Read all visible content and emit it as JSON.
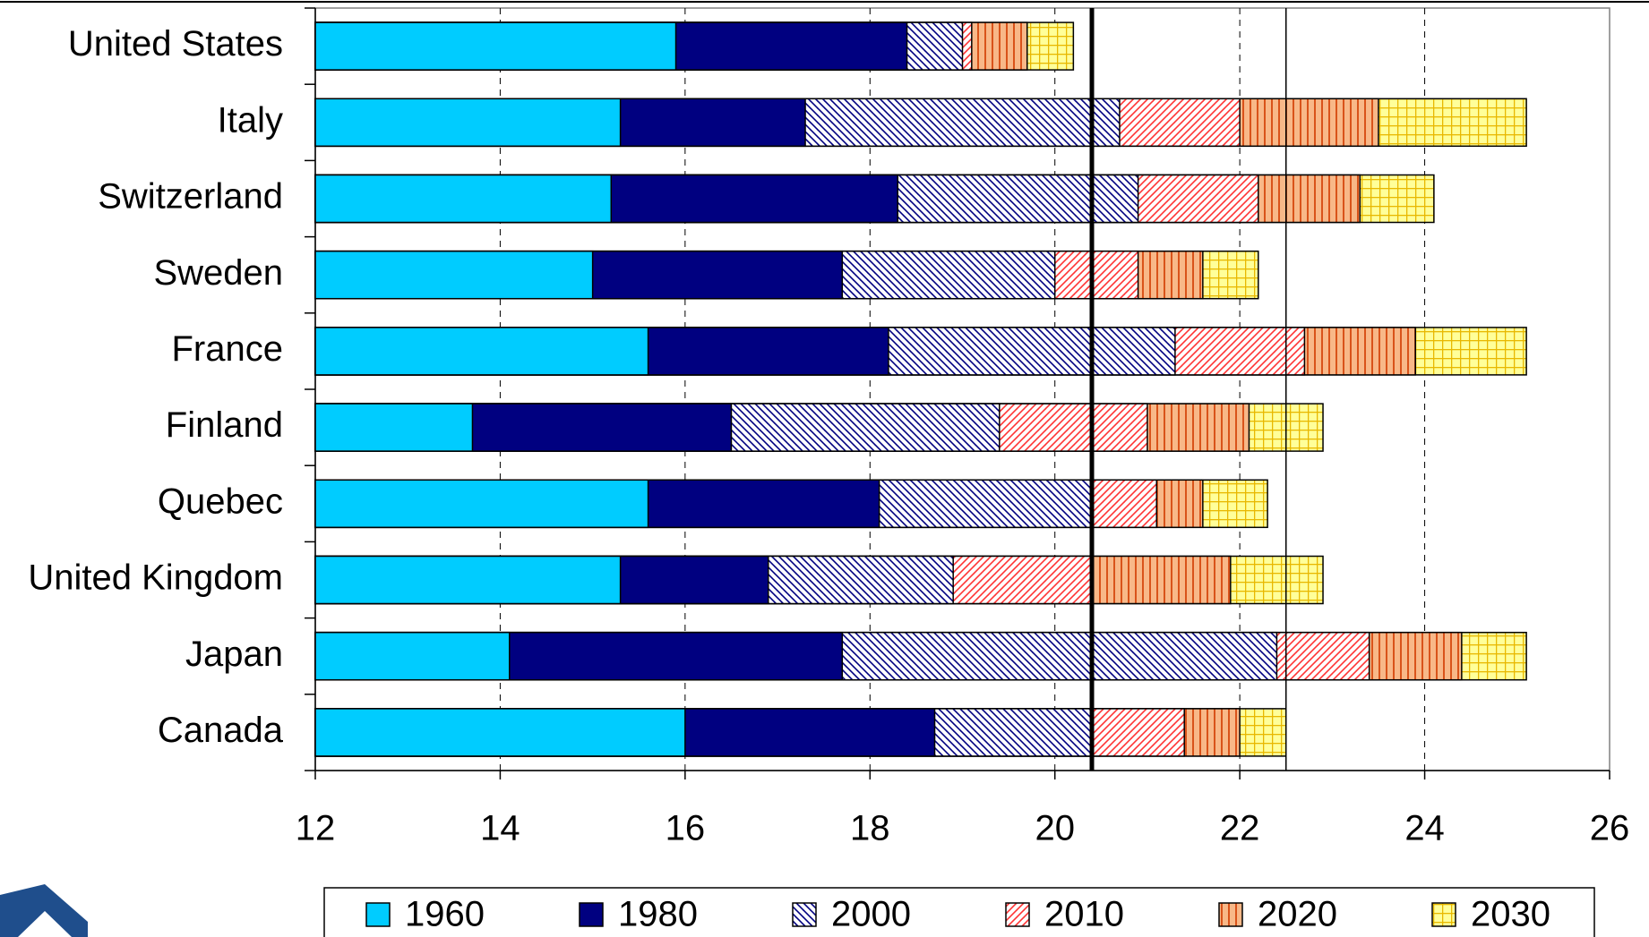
{
  "chart_data": {
    "type": "bar",
    "orientation": "horizontal",
    "overlap": true,
    "categories": [
      "United States",
      "Italy",
      "Switzerland",
      "Sweden",
      "France",
      "Finland",
      "Quebec",
      "United Kingdom",
      "Japan",
      "Canada"
    ],
    "series": [
      {
        "name": "1960",
        "color": "#00ccff",
        "background": "#00ccff",
        "pattern": "solid",
        "values": [
          15.9,
          15.3,
          15.2,
          15.0,
          15.6,
          13.7,
          15.6,
          15.3,
          14.1,
          16.0
        ]
      },
      {
        "name": "1980",
        "color": "#000080",
        "background": "#000080",
        "pattern": "solid",
        "values": [
          18.4,
          17.3,
          18.3,
          17.7,
          18.2,
          16.5,
          18.1,
          16.9,
          17.7,
          18.7
        ]
      },
      {
        "name": "2000",
        "color": "#000080",
        "background": "#ffffff",
        "pattern": "backslash",
        "values": [
          19.0,
          20.7,
          20.9,
          20.0,
          21.3,
          19.4,
          20.4,
          18.9,
          22.4,
          20.4
        ]
      },
      {
        "name": "2010",
        "color": "#ff3333",
        "background": "#ffffff",
        "pattern": "slash",
        "values": [
          19.1,
          22.0,
          22.2,
          20.9,
          22.7,
          21.0,
          21.1,
          20.4,
          23.4,
          21.4
        ]
      },
      {
        "name": "2020",
        "color": "#d9531a",
        "background": "#f8b888",
        "pattern": "vertical",
        "values": [
          19.7,
          23.5,
          23.3,
          21.6,
          23.9,
          22.1,
          21.6,
          21.9,
          24.4,
          22.0
        ]
      },
      {
        "name": "2030",
        "color": "#e8b800",
        "background": "#ffff99",
        "pattern": "grid",
        "values": [
          20.2,
          25.1,
          24.1,
          22.2,
          25.1,
          22.9,
          22.3,
          22.9,
          25.1,
          22.5
        ]
      }
    ],
    "xlim": [
      12,
      26
    ],
    "xticks": [
      12,
      14,
      16,
      18,
      20,
      22,
      24,
      26
    ],
    "grid": true,
    "vlines": [
      {
        "value": 20.4,
        "style": "thick"
      },
      {
        "value": 22.5,
        "style": "thin"
      }
    ],
    "legend": "bottom"
  }
}
